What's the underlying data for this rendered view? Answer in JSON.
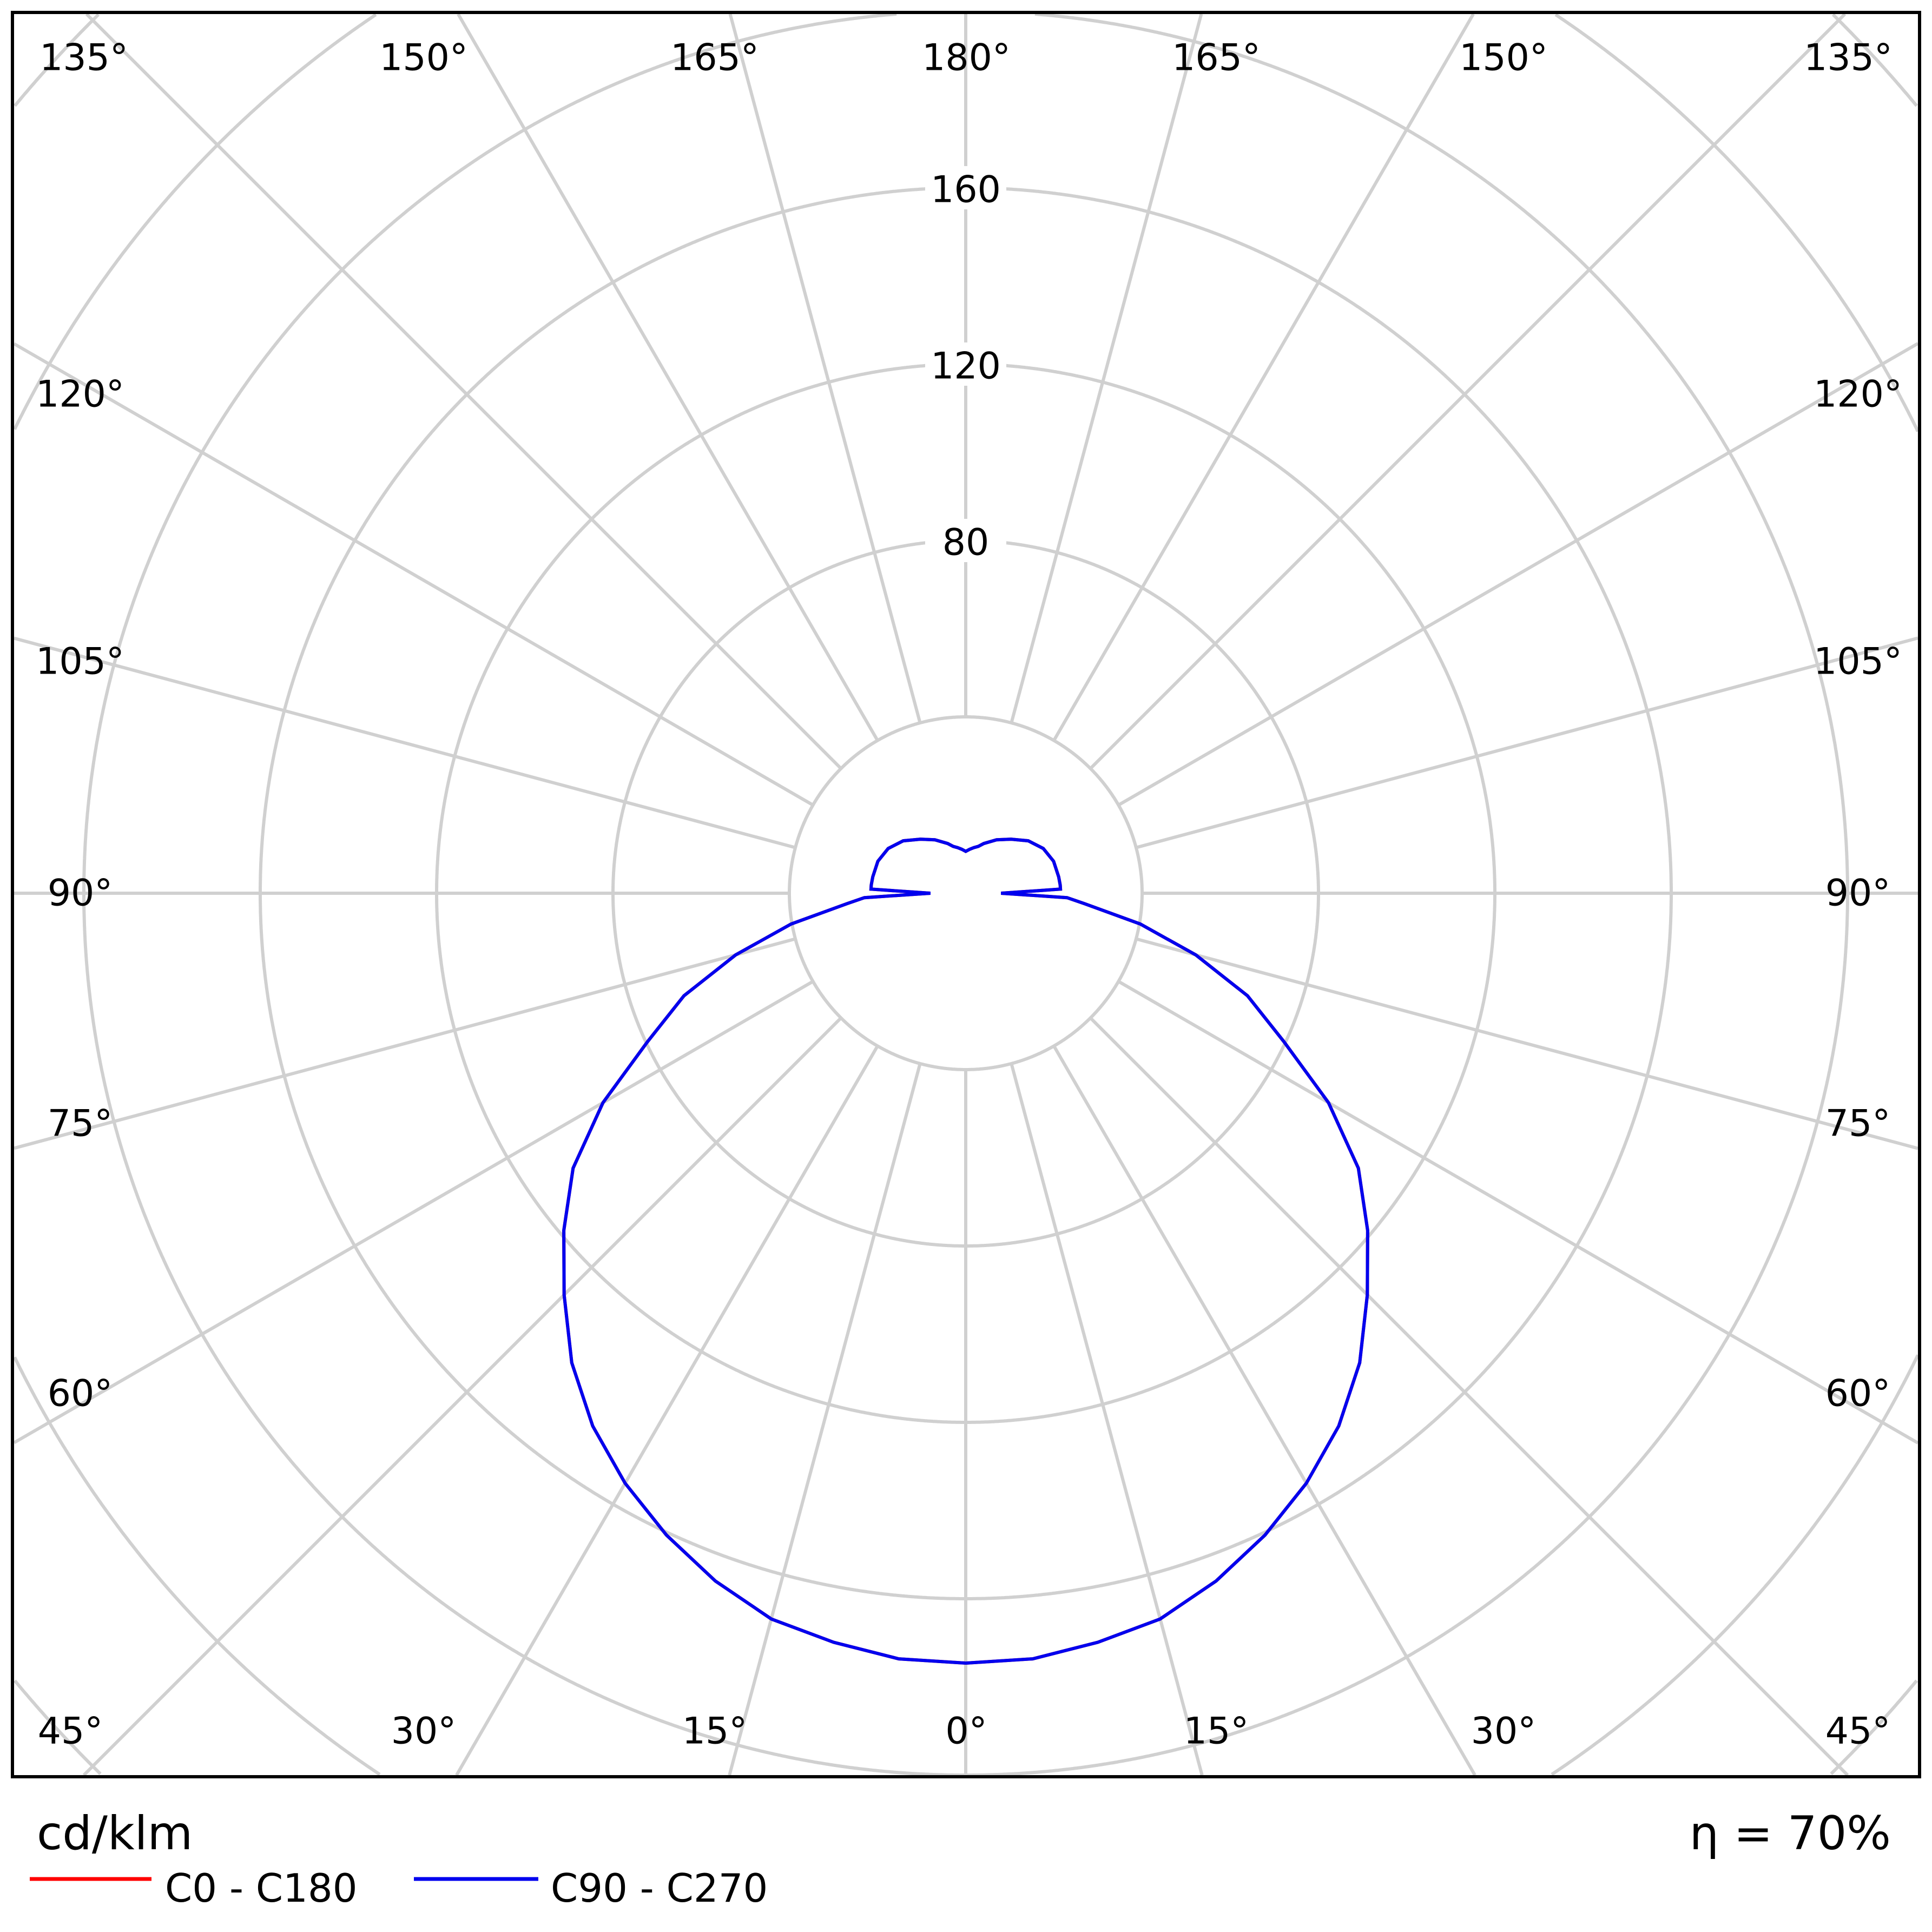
{
  "chart_data": {
    "type": "polar",
    "unit_label": "cd/klm",
    "efficiency_label": "η = 70%",
    "radial_ticks": [
      40,
      80,
      120,
      160,
      200,
      240,
      280
    ],
    "radial_tick_labels": [
      "80",
      "120",
      "160"
    ],
    "rlim": [
      0,
      280
    ],
    "grid": true,
    "angle_step_deg": 15,
    "angle_labels_top": [
      "135°",
      "150°",
      "165°",
      "180°",
      "165°",
      "150°",
      "135°"
    ],
    "angle_labels_left": [
      "120°",
      "105°",
      "90°",
      "75°",
      "60°"
    ],
    "angle_labels_right": [
      "120°",
      "105°",
      "90°",
      "75°",
      "60°"
    ],
    "angle_labels_bottom": [
      "45°",
      "30°",
      "15°",
      "0°",
      "15°",
      "30°",
      "45°"
    ],
    "legend_placement": "bottom-left",
    "angles_deg": [
      0,
      5,
      10,
      15,
      20,
      25,
      30,
      35,
      40,
      45,
      50,
      55,
      60,
      65,
      70,
      75,
      80,
      85,
      87.5,
      90,
      92.5,
      95,
      100,
      110,
      120,
      130,
      140,
      150,
      160,
      165,
      170,
      175,
      180
    ],
    "series": [
      {
        "name": "C0 - C180",
        "color": "#ff0000",
        "values": [
          174.6,
          174.3,
          172.5,
          170.4,
          166,
          160.6,
          154.5,
          147.5,
          139,
          128.8,
          119,
          108.7,
          95,
          79.6,
          68,
          54,
          40.2,
          27,
          23,
          8,
          21.5,
          21.5,
          21.4,
          21.2,
          20.3,
          18.5,
          16,
          14,
          12,
          11,
          10.5,
          10,
          9.5
        ]
      },
      {
        "name": "C90 - C270",
        "color": "#0000ee",
        "values": [
          174.6,
          174.3,
          172.5,
          170.4,
          166,
          160.6,
          154.5,
          147.5,
          139,
          128.8,
          119,
          108.7,
          95,
          79.6,
          68,
          54,
          40.2,
          27,
          23,
          8,
          21.5,
          21.5,
          21.4,
          21.2,
          20.3,
          18.5,
          16,
          14,
          12,
          11,
          10.5,
          10,
          9.5
        ]
      }
    ]
  }
}
